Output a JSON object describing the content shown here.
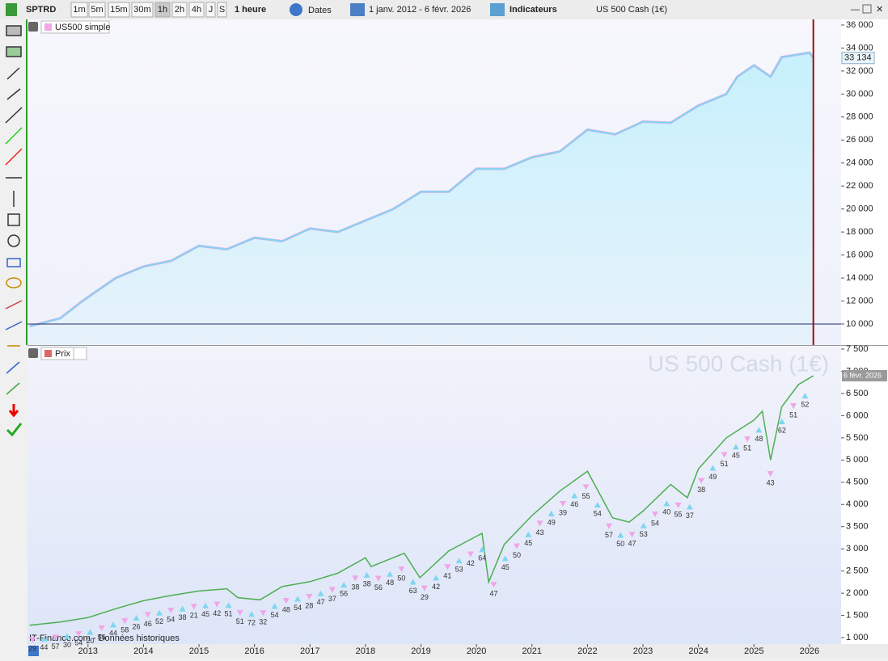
{
  "toolbar": {
    "symbol": "SPTRD",
    "timeframes": [
      "1m",
      "5m",
      "15m",
      "30m",
      "1h",
      "2h",
      "4h",
      "J",
      "S"
    ],
    "interval": "1 heure",
    "dates_button": "Dates",
    "date_range": "1 janv. 2012 - 6 févr. 2026",
    "indicators_button": "Indicateurs",
    "instrument": "US 500 Cash (1€)"
  },
  "footer": {
    "source": "IT-Finance.com - Données historiques"
  },
  "chart_data": [
    {
      "type": "area",
      "title": "US500 simple",
      "color": "#7fd6f0",
      "x": [
        2011.95,
        2012.5,
        2012.9,
        2013.5,
        2014.0,
        2014.5,
        2015.0,
        2015.5,
        2016.0,
        2016.5,
        2017.0,
        2017.5,
        2018.0,
        2018.5,
        2019.0,
        2019.5,
        2020.0,
        2020.5,
        2021.0,
        2021.5,
        2022.0,
        2022.5,
        2023.0,
        2023.5,
        2024.0,
        2024.5,
        2024.7,
        2025.0,
        2025.3,
        2025.5,
        2026.0,
        2026.07
      ],
      "values": [
        9800,
        10500,
        12000,
        14000,
        15000,
        15500,
        16800,
        16500,
        17500,
        17200,
        18300,
        18000,
        19000,
        20000,
        21500,
        21500,
        23500,
        23500,
        24500,
        25000,
        26900,
        26500,
        27600,
        27500,
        29000,
        30000,
        31500,
        32500,
        31500,
        33200,
        33600,
        33134
      ],
      "current": {
        "value": 33134,
        "label": "33 134"
      },
      "reference_line": 10000,
      "xlim": [
        2011.91,
        2026.57
      ],
      "ylim": [
        8170,
        36490
      ],
      "yticks": [
        {
          "value": 10000,
          "label": "10 000"
        },
        {
          "value": 12000,
          "label": "12 000"
        },
        {
          "value": 14000,
          "label": "14 000"
        },
        {
          "value": 16000,
          "label": "16 000"
        },
        {
          "value": 18000,
          "label": "18 000"
        },
        {
          "value": 20000,
          "label": "20 000"
        },
        {
          "value": 22000,
          "label": "22 000"
        },
        {
          "value": 24000,
          "label": "24 000"
        },
        {
          "value": 26000,
          "label": "26 000"
        },
        {
          "value": 28000,
          "label": "28 000"
        },
        {
          "value": 30000,
          "label": "30 000"
        },
        {
          "value": 32000,
          "label": "32 000"
        },
        {
          "value": 34000,
          "label": "34 000"
        },
        {
          "value": 36000,
          "label": "36 000"
        }
      ]
    },
    {
      "type": "line",
      "title": "Prix",
      "watermark": "US 500 Cash (1€)",
      "date_label": "6 févr. 2026",
      "color": "#4caf50",
      "x": [
        2011.95,
        2012.5,
        2013.0,
        2013.5,
        2014.0,
        2014.5,
        2015.0,
        2015.5,
        2015.7,
        2016.1,
        2016.5,
        2017.0,
        2017.5,
        2018.0,
        2018.1,
        2018.7,
        2018.98,
        2019.5,
        2020.1,
        2020.22,
        2020.5,
        2021.0,
        2021.5,
        2022.0,
        2022.45,
        2022.75,
        2023.0,
        2023.5,
        2023.8,
        2024.0,
        2024.5,
        2025.0,
        2025.15,
        2025.3,
        2025.5,
        2025.8,
        2026.07
      ],
      "values": [
        1280,
        1350,
        1450,
        1650,
        1830,
        1950,
        2050,
        2100,
        1900,
        1850,
        2150,
        2260,
        2450,
        2800,
        2600,
        2900,
        2350,
        2950,
        3350,
        2250,
        3100,
        3750,
        4300,
        4750,
        3700,
        3600,
        3850,
        4450,
        4150,
        4800,
        5500,
        5900,
        6100,
        5000,
        6200,
        6700,
        6900
      ],
      "trade_labels": [
        "29",
        "44",
        "57",
        "30",
        "54",
        "20",
        "56",
        "44",
        "58",
        "26",
        "46",
        "52",
        "54",
        "38",
        "21",
        "45",
        "42",
        "51",
        "51",
        "72",
        "32",
        "54",
        "48",
        "54",
        "28",
        "47",
        "37",
        "56",
        "38",
        "38",
        "56",
        "48",
        "50",
        "63",
        "29",
        "42",
        "41",
        "53",
        "42",
        "64",
        "47",
        "45",
        "50",
        "45",
        "43",
        "49",
        "39",
        "46",
        "55",
        "54",
        "57",
        "50",
        "47",
        "53",
        "54",
        "40",
        "55",
        "37",
        "38",
        "49",
        "51",
        "45",
        "51",
        "48",
        "43",
        "62",
        "51",
        "52"
      ],
      "xlim": [
        2011.91,
        2026.57
      ],
      "ylim": [
        855,
        7573
      ],
      "xticks": [
        2013,
        2014,
        2015,
        2016,
        2017,
        2018,
        2019,
        2020,
        2021,
        2022,
        2023,
        2024,
        2025,
        2026
      ],
      "yticks": [
        {
          "value": 1000,
          "label": "1 000"
        },
        {
          "value": 1500,
          "label": "1 500"
        },
        {
          "value": 2000,
          "label": "2 000"
        },
        {
          "value": 2500,
          "label": "2 500"
        },
        {
          "value": 3000,
          "label": "3 000"
        },
        {
          "value": 3500,
          "label": "3 500"
        },
        {
          "value": 4000,
          "label": "4 000"
        },
        {
          "value": 4500,
          "label": "4 500"
        },
        {
          "value": 5000,
          "label": "5 000"
        },
        {
          "value": 5500,
          "label": "5 500"
        },
        {
          "value": 6000,
          "label": "6 000"
        },
        {
          "value": 6500,
          "label": "6 500"
        },
        {
          "value": 7000,
          "label": "7 000"
        },
        {
          "value": 7500,
          "label": "7 500"
        }
      ]
    }
  ]
}
